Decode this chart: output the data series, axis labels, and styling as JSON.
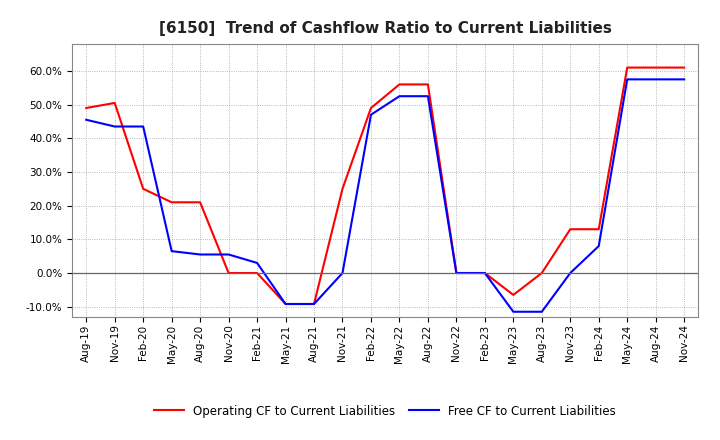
{
  "title": "[6150]  Trend of Cashflow Ratio to Current Liabilities",
  "x_labels": [
    "Aug-19",
    "Nov-19",
    "Feb-20",
    "May-20",
    "Aug-20",
    "Nov-20",
    "Feb-21",
    "May-21",
    "Aug-21",
    "Nov-21",
    "Feb-22",
    "May-22",
    "Aug-22",
    "Nov-22",
    "Feb-23",
    "May-23",
    "Aug-23",
    "Nov-23",
    "Feb-24",
    "May-24",
    "Aug-24",
    "Nov-24"
  ],
  "op_cf": [
    0.49,
    0.505,
    0.25,
    0.21,
    0.21,
    0.0,
    0.0,
    -0.092,
    -0.092,
    0.25,
    0.49,
    0.56,
    0.56,
    0.0,
    0.0,
    -0.065,
    0.0,
    0.13,
    0.13,
    0.61,
    0.61,
    0.61
  ],
  "free_cf": [
    0.455,
    0.435,
    0.435,
    0.065,
    0.055,
    0.055,
    0.03,
    -0.092,
    -0.092,
    0.0,
    0.47,
    0.525,
    0.525,
    0.0,
    0.0,
    -0.115,
    -0.115,
    0.0,
    0.08,
    0.575,
    0.575,
    0.575
  ],
  "ylim": [
    -0.13,
    0.68
  ],
  "yticks": [
    -0.1,
    0.0,
    0.1,
    0.2,
    0.3,
    0.4,
    0.5,
    0.6
  ],
  "operating_color": "#FF0000",
  "free_color": "#0000FF",
  "background_color": "#FFFFFF",
  "grid_color": "#999999",
  "legend_op": "Operating CF to Current Liabilities",
  "legend_free": "Free CF to Current Liabilities",
  "title_fontsize": 11,
  "tick_fontsize": 7.5
}
